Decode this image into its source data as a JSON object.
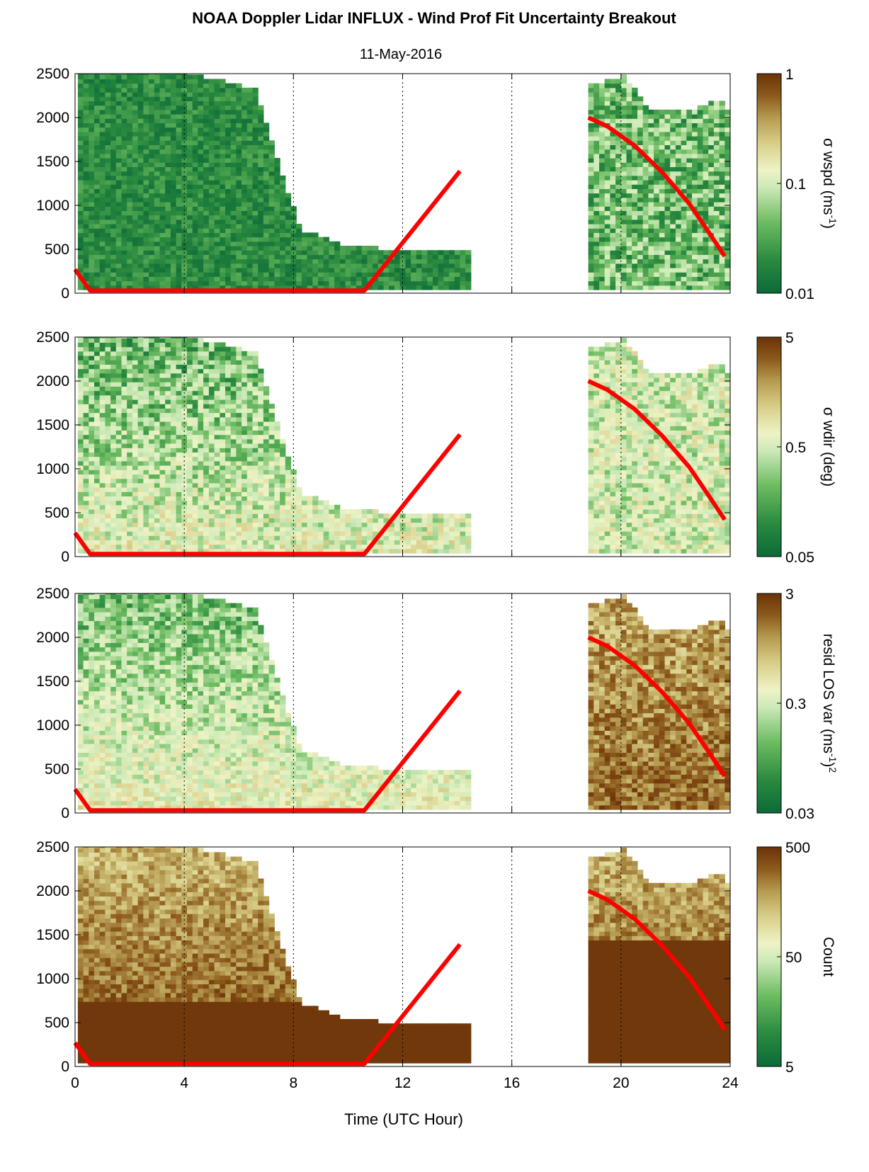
{
  "figure": {
    "title": "NOAA Doppler Lidar INFLUX - Wind Prof Fit Uncertainty Breakout",
    "date": "11-May-2016",
    "xlabel": "Time (UTC Hour)"
  },
  "chart_data": {
    "type": "heatmap",
    "xlim": [
      0,
      24
    ],
    "ylim": [
      0,
      2500
    ],
    "xticks": [
      0,
      4,
      8,
      12,
      16,
      20,
      24
    ],
    "xtick_labels": [
      "0",
      "4",
      "8",
      "12",
      "16",
      "20",
      "24"
    ],
    "yticks": [
      0,
      500,
      1000,
      1500,
      2000,
      2500
    ],
    "ytick_labels": [
      "0",
      "500",
      "1000",
      "1500",
      "2000",
      "2500"
    ],
    "grid": "dotted vertical lines at x ticks",
    "colormap": [
      "#0c6a38",
      "#2a8a3f",
      "#6cbb60",
      "#cbe9b7",
      "#eef3c5",
      "#d9cf8a",
      "#b59a50",
      "#8c5a1c",
      "#6b3208"
    ],
    "line_color": "#ff0000",
    "boundary_layer_height": {
      "segments": [
        [
          [
            0.0,
            270
          ],
          [
            0.55,
            30
          ],
          [
            10.6,
            30
          ],
          [
            14.1,
            1390
          ]
        ],
        [
          [
            18.8,
            2000
          ],
          [
            19.5,
            1900
          ],
          [
            20.5,
            1680
          ],
          [
            21.5,
            1380
          ],
          [
            22.5,
            1020
          ],
          [
            23.2,
            700
          ],
          [
            23.8,
            420
          ]
        ]
      ]
    },
    "data_coverage": [
      {
        "x": [
          0.1,
          14.3
        ],
        "profile_top": [
          [
            0.1,
            2500
          ],
          [
            3.9,
            2500
          ],
          [
            6.5,
            2300
          ],
          [
            7.4,
            1400
          ],
          [
            8.2,
            700
          ],
          [
            10.0,
            500
          ],
          [
            14.3,
            460
          ]
        ]
      },
      {
        "x": [
          18.8,
          23.8
        ],
        "profile_top": [
          [
            18.8,
            2350
          ],
          [
            20.0,
            2450
          ],
          [
            21.0,
            2050
          ],
          [
            22.5,
            2050
          ],
          [
            23.5,
            2200
          ],
          [
            23.8,
            2050
          ]
        ]
      }
    ],
    "panels": [
      {
        "name": "sigma-wspd",
        "colorbar_label": "σ wspd (ms",
        "colorbar_label_sup": "-1",
        "colorbar_label_tail": ")",
        "colorbar_ticks": [
          "1",
          "0.1",
          "0.01"
        ],
        "colorbar_scale": "log",
        "clim": [
          0.01,
          1
        ]
      },
      {
        "name": "sigma-wdir",
        "colorbar_label": "σ wdir (deg)",
        "colorbar_label_sup": "",
        "colorbar_label_tail": "",
        "colorbar_ticks": [
          "5",
          "0.5",
          "0.05"
        ],
        "colorbar_scale": "log",
        "clim": [
          0.05,
          5
        ]
      },
      {
        "name": "resid-los-var",
        "colorbar_label": "resid LOS var (ms",
        "colorbar_label_sup": "-1",
        "colorbar_label_tail": ")",
        "colorbar_label_sup2": "2",
        "colorbar_ticks": [
          "3",
          "0.3",
          "0.03"
        ],
        "colorbar_scale": "log",
        "clim": [
          0.03,
          3
        ]
      },
      {
        "name": "count",
        "colorbar_label": "Count",
        "colorbar_label_sup": "",
        "colorbar_label_tail": "",
        "colorbar_ticks": [
          "500",
          "50",
          "5"
        ],
        "colorbar_scale": "log",
        "clim": [
          1,
          500
        ]
      }
    ]
  }
}
